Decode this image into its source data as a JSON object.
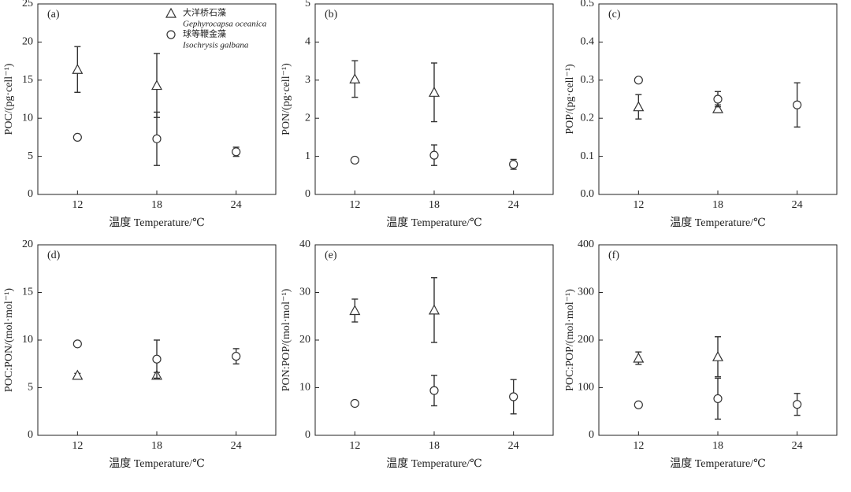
{
  "chart_data": [
    {
      "type": "scatter",
      "panel_label": "(a)",
      "ylabel": "POC/(pg·cell⁻¹)",
      "xlabel": "温度 Temperature/℃",
      "x": [
        12,
        18,
        24
      ],
      "xlim": [
        9,
        27
      ],
      "xticks": [
        12,
        18,
        24
      ],
      "ylim": [
        0,
        25
      ],
      "yticks": [
        0,
        5,
        10,
        15,
        20,
        25
      ],
      "legend": true,
      "series": [
        {
          "name": "大洋桥石藻",
          "latin_name": "Gephyrocapsa oceanica",
          "marker": "triangle",
          "color": "#333333",
          "values": [
            16.4,
            14.3,
            null
          ],
          "errors": [
            3.0,
            4.2,
            null
          ]
        },
        {
          "name": "球等鞭金藻",
          "latin_name": "Isochrysis galbana",
          "marker": "circle",
          "color": "#333333",
          "values": [
            7.5,
            7.3,
            5.6
          ],
          "errors": [
            null,
            3.5,
            0.6
          ]
        }
      ]
    },
    {
      "type": "scatter",
      "panel_label": "(b)",
      "ylabel": "PON/(pg·cell⁻¹)",
      "xlabel": "温度 Temperature/℃",
      "x": [
        12,
        18,
        24
      ],
      "xlim": [
        9,
        27
      ],
      "xticks": [
        12,
        18,
        24
      ],
      "ylim": [
        0,
        5
      ],
      "yticks": [
        0,
        1,
        2,
        3,
        4,
        5
      ],
      "series": [
        {
          "marker": "triangle",
          "color": "#333333",
          "values": [
            3.03,
            2.68,
            null
          ],
          "errors": [
            0.48,
            0.77,
            null
          ]
        },
        {
          "marker": "circle",
          "color": "#333333",
          "values": [
            0.9,
            1.03,
            0.79
          ],
          "errors": [
            null,
            0.27,
            0.13
          ]
        }
      ]
    },
    {
      "type": "scatter",
      "panel_label": "(c)",
      "ylabel": "POP/(pg·cell⁻¹)",
      "xlabel": "温度 Temperature/℃",
      "x": [
        12,
        18,
        24
      ],
      "xlim": [
        9,
        27
      ],
      "xticks": [
        12,
        18,
        24
      ],
      "ylim": [
        0,
        0.5
      ],
      "yticks": [
        {
          "value": 0,
          "label": "0.0"
        },
        0.1,
        0.2,
        0.3,
        0.4,
        0.5
      ],
      "series": [
        {
          "marker": "triangle",
          "color": "#333333",
          "values": [
            0.23,
            0.225,
            null
          ],
          "errors": [
            0.032,
            0.01,
            null
          ]
        },
        {
          "marker": "circle",
          "color": "#333333",
          "values": [
            0.3,
            0.25,
            0.235
          ],
          "errors": [
            null,
            0.02,
            0.058
          ]
        }
      ]
    },
    {
      "type": "scatter",
      "panel_label": "(d)",
      "ylabel": "POC:PON/(mol·mol⁻¹)",
      "xlabel": "温度 Temperature/℃",
      "x": [
        12,
        18,
        24
      ],
      "xlim": [
        9,
        27
      ],
      "xticks": [
        12,
        18,
        24
      ],
      "ylim": [
        0,
        20
      ],
      "yticks": [
        0,
        5,
        10,
        15,
        20
      ],
      "series": [
        {
          "marker": "triangle",
          "color": "#333333",
          "values": [
            6.3,
            6.3,
            null
          ],
          "errors": [
            0.2,
            0.3,
            null
          ]
        },
        {
          "marker": "circle",
          "color": "#333333",
          "values": [
            9.6,
            8.0,
            8.3
          ],
          "errors": [
            null,
            2.0,
            0.8
          ]
        }
      ]
    },
    {
      "type": "scatter",
      "panel_label": "(e)",
      "ylabel": "PON:POP/(mol·mol⁻¹)",
      "xlabel": "温度 Temperature/℃",
      "x": [
        12,
        18,
        24
      ],
      "xlim": [
        9,
        27
      ],
      "xticks": [
        12,
        18,
        24
      ],
      "ylim": [
        0,
        40
      ],
      "yticks": [
        0,
        10,
        20,
        30,
        40
      ],
      "series": [
        {
          "marker": "triangle",
          "color": "#333333",
          "values": [
            26.2,
            26.3,
            null
          ],
          "errors": [
            2.4,
            6.8,
            null
          ]
        },
        {
          "marker": "circle",
          "color": "#333333",
          "values": [
            6.7,
            9.4,
            8.1
          ],
          "errors": [
            null,
            3.2,
            3.6
          ]
        }
      ]
    },
    {
      "type": "scatter",
      "panel_label": "(f)",
      "ylabel": "POC:POP/(mol·mol⁻¹)",
      "xlabel": "温度 Temperature/℃",
      "x": [
        12,
        18,
        24
      ],
      "xlim": [
        9,
        27
      ],
      "xticks": [
        12,
        18,
        24
      ],
      "ylim": [
        0,
        400
      ],
      "yticks": [
        0,
        100,
        200,
        300,
        400
      ],
      "series": [
        {
          "marker": "triangle",
          "color": "#333333",
          "values": [
            162,
            165,
            null
          ],
          "errors": [
            13,
            42,
            null
          ]
        },
        {
          "marker": "circle",
          "color": "#333333",
          "values": [
            64,
            77,
            65
          ],
          "errors": [
            null,
            43,
            23
          ]
        }
      ]
    }
  ]
}
